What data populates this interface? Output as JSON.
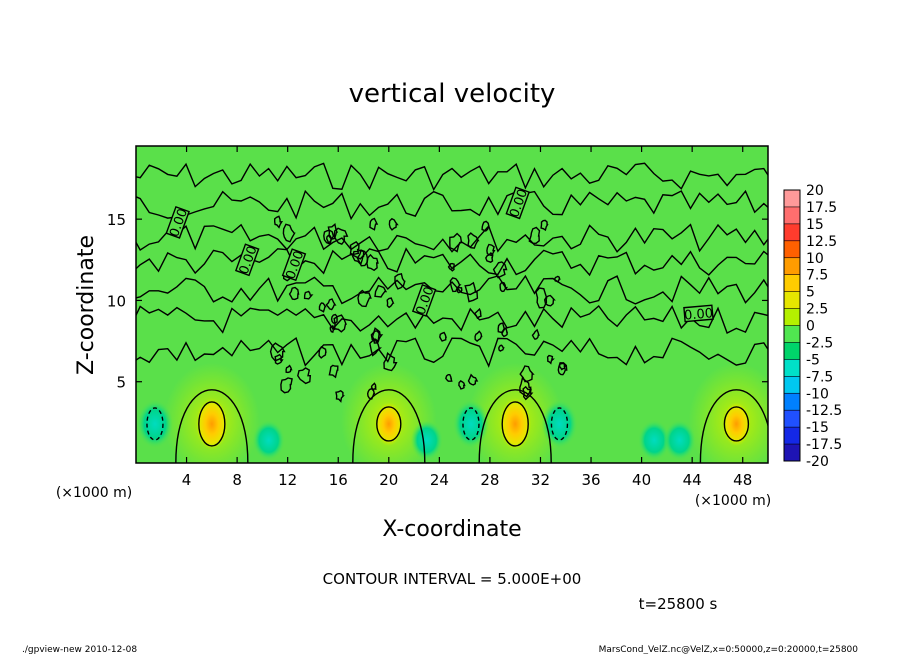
{
  "chart_data": {
    "type": "heatmap",
    "title": "vertical velocity",
    "xlabel": "X-coordinate",
    "ylabel": "Z-coordinate",
    "x_unit_note": "(×1000 m)",
    "y_unit_note": "(×1000 m)",
    "xlim": [
      0,
      50
    ],
    "ylim": [
      0,
      19.5
    ],
    "x_ticks": [
      4,
      8,
      12,
      16,
      20,
      24,
      28,
      32,
      36,
      40,
      44,
      48
    ],
    "y_ticks": [
      5,
      10,
      15
    ],
    "colorbar_levels": [
      "20",
      "17.5",
      "15",
      "12.5",
      "10",
      "7.5",
      "5",
      "2.5",
      "0",
      "-2.5",
      "-5",
      "-7.5",
      "-10",
      "-12.5",
      "-15",
      "-17.5",
      "-20"
    ],
    "colorbar_colors": [
      "#ff9a9a",
      "#ff6e6e",
      "#ff3c2d",
      "#ff6000",
      "#ff9c00",
      "#ffcc00",
      "#e6e600",
      "#b4f000",
      "#50e650",
      "#00d46a",
      "#00e0c8",
      "#00c8f0",
      "#0080ff",
      "#2050ff",
      "#1428e6",
      "#1e14b4",
      "#6428c8"
    ],
    "contour_interval": "CONTOUR INTERVAL = 5.000E+00",
    "time_label": "t=25800 s",
    "contour_labels": [
      "0.00",
      "0.00",
      "0.00",
      "0.00",
      "0.00",
      "0.00"
    ],
    "updraft_centers_x": [
      6,
      20,
      30,
      47.5
    ],
    "downdraft_centers_x": [
      1.5,
      26.5,
      33.5
    ]
  },
  "footer": {
    "left": "./gpview-new  2010-12-08",
    "right": "MarsCond_VelZ.nc@VelZ,x=0:50000,z=0:20000,t=25800"
  }
}
